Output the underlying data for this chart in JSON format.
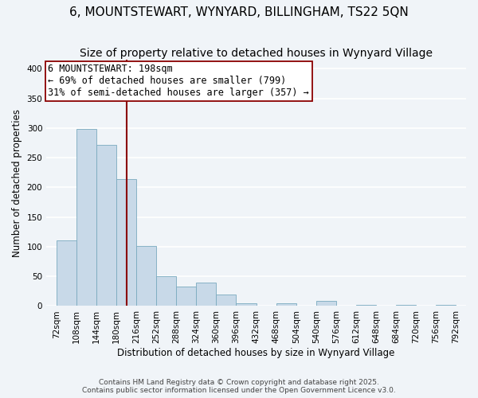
{
  "title": "6, MOUNTSTEWART, WYNYARD, BILLINGHAM, TS22 5QN",
  "subtitle": "Size of property relative to detached houses in Wynyard Village",
  "xlabel": "Distribution of detached houses by size in Wynyard Village",
  "ylabel": "Number of detached properties",
  "bar_edges": [
    72,
    108,
    144,
    180,
    216,
    252,
    288,
    324,
    360,
    396,
    432,
    468,
    504,
    540,
    576,
    612,
    648,
    684,
    720,
    756,
    792
  ],
  "bar_heights": [
    110,
    299,
    272,
    214,
    101,
    50,
    33,
    40,
    20,
    5,
    0,
    5,
    0,
    8,
    0,
    2,
    0,
    2,
    0,
    2
  ],
  "bar_color": "#c8d9e8",
  "bar_edge_color": "#7aaabf",
  "property_size": 198,
  "vline_color": "#8b0000",
  "annotation_line1": "6 MOUNTSTEWART: 198sqm",
  "annotation_line2": "← 69% of detached houses are smaller (799)",
  "annotation_line3": "31% of semi-detached houses are larger (357) →",
  "annotation_box_edgecolor": "#8b0000",
  "annotation_fontsize": 8.5,
  "ylim": [
    0,
    415
  ],
  "yticks": [
    0,
    50,
    100,
    150,
    200,
    250,
    300,
    350,
    400
  ],
  "footnote1": "Contains HM Land Registry data © Crown copyright and database right 2025.",
  "footnote2": "Contains public sector information licensed under the Open Government Licence v3.0.",
  "background_color": "#f0f4f8",
  "grid_color": "#ffffff",
  "title_fontsize": 11,
  "subtitle_fontsize": 10,
  "xlabel_fontsize": 8.5,
  "ylabel_fontsize": 8.5,
  "tick_fontsize": 7.5
}
